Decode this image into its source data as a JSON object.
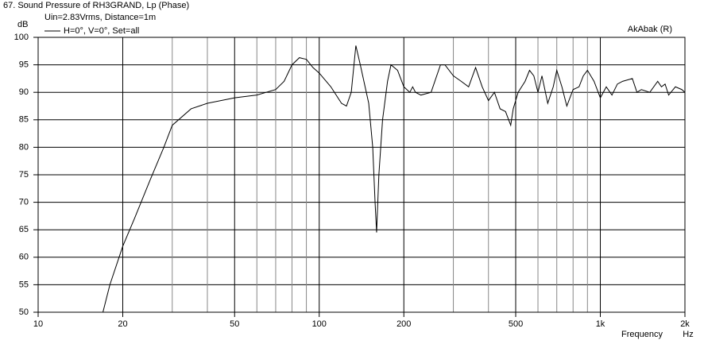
{
  "chart_data": {
    "type": "line",
    "title": "67. Sound Pressure of RH3GRAND, Lp (Phase)",
    "subtitle": "Uin=2.83Vrms, Distance=1m",
    "watermark": "AkAbak (R)",
    "y_label": "dB",
    "x_label": "Frequency",
    "x_unit": "Hz",
    "log_x": true,
    "grid": true,
    "xlim": [
      10,
      2000
    ],
    "ylim": [
      50,
      100
    ],
    "xticks": [
      10,
      20,
      50,
      100,
      200,
      500,
      {
        "value": 1000,
        "label": "1k"
      },
      {
        "value": 2000,
        "label": "2k"
      }
    ],
    "xgrid": [
      30,
      40,
      60,
      70,
      80,
      90,
      300,
      400,
      600,
      700,
      800,
      900
    ],
    "yticks": [
      50,
      55,
      60,
      65,
      70,
      75,
      80,
      85,
      90,
      95,
      100
    ],
    "x": [
      17,
      18,
      20,
      22,
      25,
      28,
      30,
      35,
      40,
      50,
      60,
      70,
      75,
      80,
      85,
      90,
      95,
      100,
      110,
      120,
      125,
      130,
      135,
      140,
      150,
      155,
      158,
      160,
      163,
      168,
      175,
      180,
      190,
      200,
      210,
      215,
      220,
      230,
      250,
      270,
      280,
      300,
      320,
      340,
      360,
      380,
      400,
      420,
      440,
      460,
      480,
      490,
      510,
      540,
      560,
      580,
      600,
      620,
      650,
      680,
      700,
      730,
      760,
      800,
      840,
      870,
      900,
      950,
      1000,
      1050,
      1100,
      1150,
      1200,
      1300,
      1350,
      1400,
      1500,
      1600,
      1650,
      1700,
      1750,
      1850,
      1950,
      2000
    ],
    "series": [
      {
        "name": "H=0°, V=0°, Set=all",
        "color": "#000000",
        "values": [
          50,
          55,
          62,
          67,
          74,
          80,
          84,
          87,
          88,
          89,
          89.5,
          90.5,
          92,
          95,
          96.3,
          96,
          94.5,
          93.5,
          91,
          88,
          87.5,
          90,
          98.5,
          95,
          88,
          80,
          70,
          64.5,
          75,
          85,
          92,
          95,
          94,
          91,
          90,
          91,
          90,
          89.5,
          90,
          95,
          95,
          93,
          92,
          91,
          94.5,
          91,
          88.5,
          90,
          87,
          86.5,
          84,
          87,
          90,
          92,
          94,
          93,
          90,
          93,
          88,
          91,
          94,
          91,
          87.5,
          90.5,
          91,
          93,
          94,
          92,
          89,
          91,
          89.5,
          91.5,
          92,
          92.5,
          90,
          90.5,
          90,
          92,
          91,
          91.5,
          89.5,
          91,
          90.5,
          90
        ]
      }
    ]
  }
}
